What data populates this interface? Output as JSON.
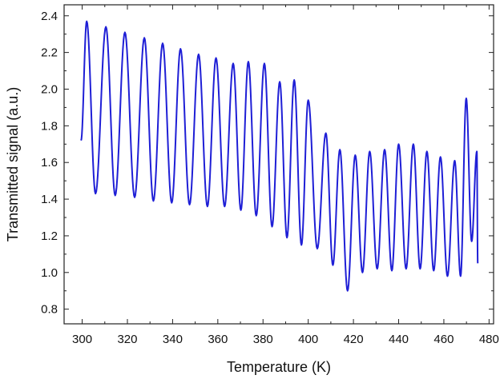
{
  "chart_data": {
    "type": "line",
    "title": "",
    "xlabel": "Temperature (K)",
    "ylabel": "Transmitted signal (a.u.)",
    "xlim": [
      292,
      482
    ],
    "ylim": [
      0.72,
      2.46
    ],
    "xticks": [
      300,
      320,
      340,
      360,
      380,
      400,
      420,
      440,
      460,
      480
    ],
    "yticks": [
      0.8,
      1.0,
      1.2,
      1.4,
      1.6,
      1.8,
      2.0,
      2.2,
      2.4
    ],
    "xtick_labels": [
      "300",
      "320",
      "340",
      "360",
      "380",
      "400",
      "420",
      "440",
      "460",
      "480"
    ],
    "ytick_labels": [
      "0.8",
      "1.0",
      "1.2",
      "1.4",
      "1.6",
      "1.8",
      "2.0",
      "2.2",
      "2.4"
    ],
    "grid": false,
    "legend": "none",
    "colors": {
      "series": "#1f1fd6",
      "axes": "#222222"
    },
    "series": [
      {
        "x_start": 299.5,
        "x_end": 475.0,
        "start_value": 1.72,
        "peaks": [
          [
            302.0,
            2.37
          ],
          [
            310.5,
            2.34
          ],
          [
            318.9,
            2.31
          ],
          [
            327.5,
            2.28
          ],
          [
            335.6,
            2.25
          ],
          [
            343.5,
            2.22
          ],
          [
            351.5,
            2.19
          ],
          [
            359.2,
            2.17
          ],
          [
            366.8,
            2.14
          ],
          [
            373.5,
            2.15
          ],
          [
            380.6,
            2.14
          ],
          [
            387.4,
            2.04
          ],
          [
            393.8,
            2.05
          ],
          [
            400.0,
            1.94
          ],
          [
            407.8,
            1.76
          ],
          [
            414.0,
            1.67
          ],
          [
            420.8,
            1.64
          ],
          [
            427.2,
            1.66
          ],
          [
            433.8,
            1.67
          ],
          [
            440.0,
            1.7
          ],
          [
            446.5,
            1.7
          ],
          [
            452.5,
            1.66
          ],
          [
            458.5,
            1.63
          ],
          [
            464.8,
            1.61
          ],
          [
            469.9,
            1.95
          ],
          [
            474.6,
            1.66
          ]
        ],
        "troughs": [
          [
            305.9,
            1.43
          ],
          [
            314.6,
            1.42
          ],
          [
            323.2,
            1.41
          ],
          [
            331.5,
            1.39
          ],
          [
            339.6,
            1.38
          ],
          [
            347.5,
            1.37
          ],
          [
            355.4,
            1.36
          ],
          [
            363.0,
            1.36
          ],
          [
            370.2,
            1.34
          ],
          [
            377.0,
            1.31
          ],
          [
            384.0,
            1.25
          ],
          [
            390.6,
            1.19
          ],
          [
            397.0,
            1.15
          ],
          [
            404.0,
            1.13
          ],
          [
            410.9,
            1.04
          ],
          [
            417.4,
            0.9
          ],
          [
            424.0,
            1.0
          ],
          [
            430.5,
            1.02
          ],
          [
            437.0,
            1.01
          ],
          [
            443.3,
            1.02
          ],
          [
            449.5,
            1.02
          ],
          [
            455.5,
            1.01
          ],
          [
            461.6,
            0.98
          ],
          [
            467.4,
            0.98
          ],
          [
            472.3,
            1.17
          ]
        ],
        "end_value": 1.05
      }
    ]
  }
}
